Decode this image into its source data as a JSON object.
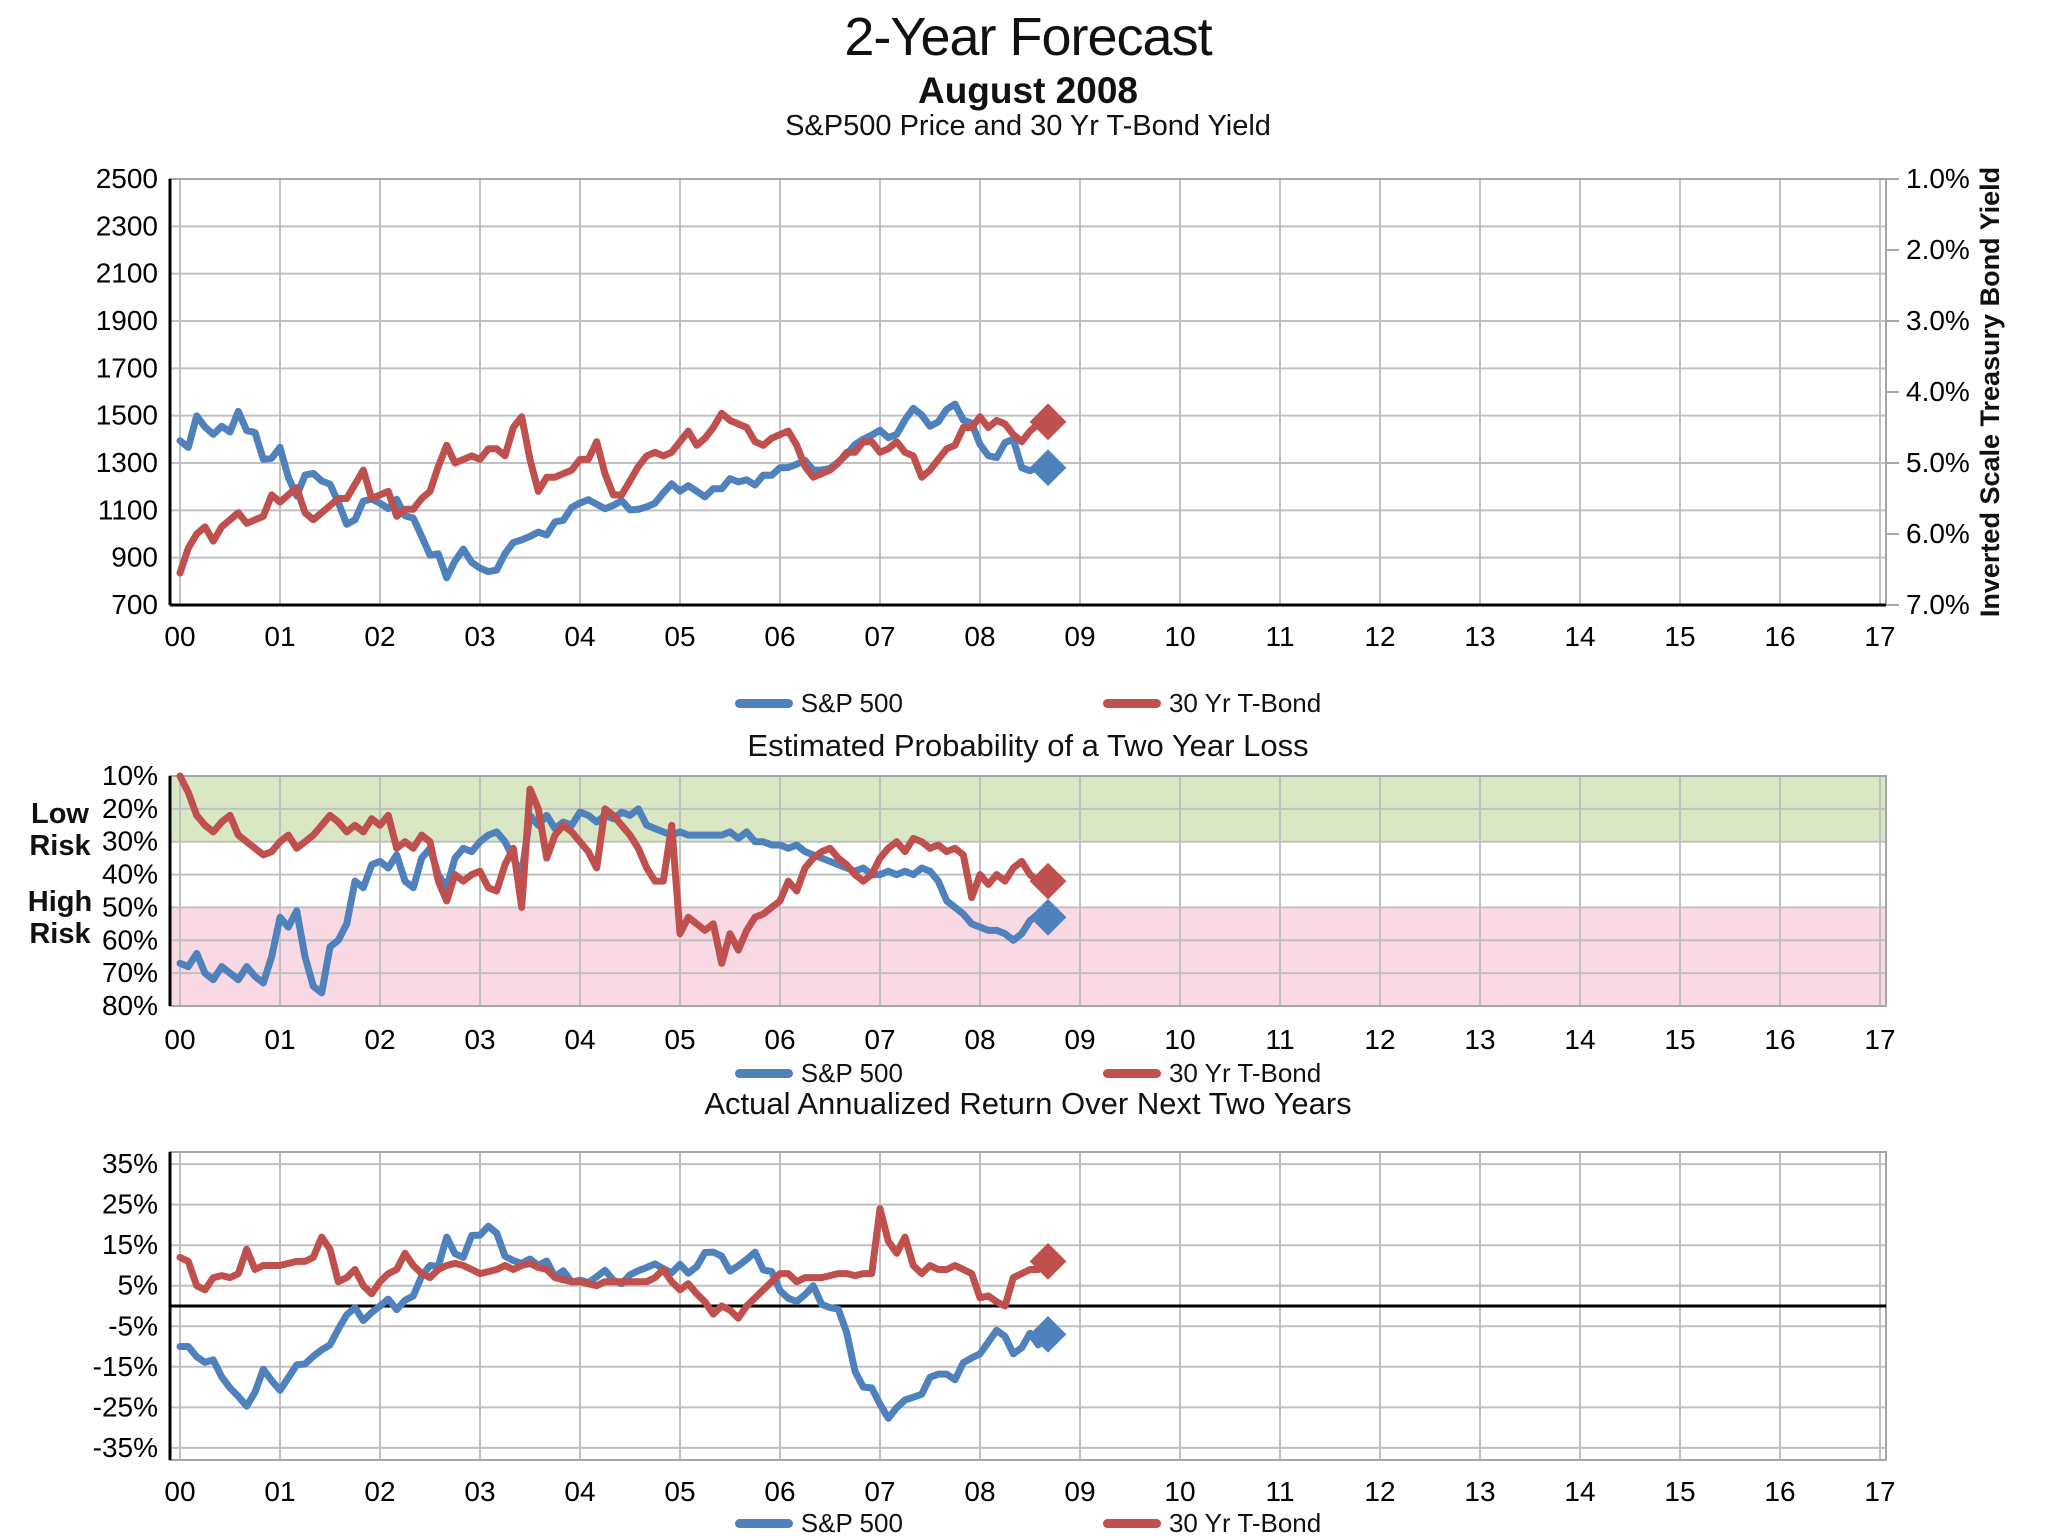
{
  "header": {
    "title": "2-Year Forecast",
    "subtitle": "August 2008"
  },
  "colors": {
    "sp500": "#4f81bd",
    "tbond": "#c0504d",
    "grid": "#c0c0c0",
    "border": "#a6a6a6",
    "axis": "#000000",
    "green_band": "#d9e7c4",
    "pink_band": "#f9d9e3"
  },
  "x_axis": {
    "labels": [
      "00",
      "01",
      "02",
      "03",
      "04",
      "05",
      "06",
      "07",
      "08",
      "09",
      "10",
      "11",
      "12",
      "13",
      "14",
      "15",
      "16",
      "17"
    ]
  },
  "legend": {
    "sp500_label": "S&P 500",
    "tbond_label": "30 Yr T-Bond"
  },
  "chart_data": [
    {
      "type": "line",
      "title": "S&P500 Price and 30 Yr T-Bond Yield",
      "x_start_year": 2000,
      "x_step_months": 1,
      "xlim_years": [
        0,
        17.2
      ],
      "left_axis": {
        "ylim": [
          700,
          2500
        ],
        "tick_values": [
          2500,
          2300,
          2100,
          1900,
          1700,
          1500,
          1300,
          1100,
          900,
          700
        ],
        "tick_labels": [
          "2500",
          "2300",
          "2100",
          "1900",
          "1700",
          "1500",
          "1300",
          "1100",
          "900",
          "700"
        ]
      },
      "right_axis": {
        "title": "Inverted Scale Treasury Bond Yield",
        "inverted": true,
        "ylim": [
          1.0,
          7.0
        ],
        "tick_values": [
          1,
          2,
          3,
          4,
          5,
          6,
          7
        ],
        "tick_labels": [
          "1.0%",
          "2.0%",
          "3.0%",
          "4.0%",
          "5.0%",
          "6.0%",
          "7.0%"
        ]
      },
      "series": [
        {
          "name": "S&P 500",
          "axis": "left",
          "color": "#4f81bd",
          "values": [
            1394,
            1366,
            1499,
            1452,
            1421,
            1455,
            1431,
            1518,
            1437,
            1429,
            1315,
            1320,
            1366,
            1240,
            1160,
            1249,
            1256,
            1224,
            1211,
            1134,
            1041,
            1060,
            1139,
            1148,
            1130,
            1107,
            1147,
            1077,
            1067,
            990,
            911,
            916,
            815,
            886,
            936,
            880,
            856,
            841,
            848,
            917,
            964,
            975,
            990,
            1008,
            996,
            1051,
            1058,
            1112,
            1131,
            1145,
            1126,
            1107,
            1121,
            1141,
            1102,
            1104,
            1115,
            1130,
            1174,
            1212,
            1181,
            1204,
            1181,
            1157,
            1192,
            1191,
            1234,
            1220,
            1229,
            1207,
            1249,
            1248,
            1280,
            1281,
            1295,
            1311,
            1270,
            1270,
            1277,
            1304,
            1336,
            1378,
            1401,
            1418,
            1438,
            1407,
            1421,
            1482,
            1531,
            1503,
            1455,
            1474,
            1527,
            1549,
            1481,
            1468,
            1379,
            1331,
            1323,
            1386,
            1400,
            1280,
            1267,
            1283
          ],
          "end_marker": {
            "x_year": 8.68,
            "value": 1280
          }
        },
        {
          "name": "30 Yr T-Bond",
          "axis": "right",
          "color": "#c0504d",
          "values": [
            6.55,
            6.2,
            6.0,
            5.9,
            6.1,
            5.9,
            5.8,
            5.7,
            5.85,
            5.8,
            5.75,
            5.45,
            5.55,
            5.45,
            5.35,
            5.7,
            5.8,
            5.7,
            5.6,
            5.5,
            5.5,
            5.3,
            5.1,
            5.5,
            5.45,
            5.4,
            5.75,
            5.65,
            5.65,
            5.5,
            5.4,
            5.05,
            4.75,
            5.0,
            4.95,
            4.9,
            4.95,
            4.8,
            4.8,
            4.9,
            4.5,
            4.35,
            4.95,
            5.4,
            5.2,
            5.2,
            5.15,
            5.1,
            4.95,
            4.95,
            4.7,
            5.15,
            5.45,
            5.45,
            5.25,
            5.05,
            4.9,
            4.85,
            4.9,
            4.85,
            4.7,
            4.55,
            4.75,
            4.65,
            4.5,
            4.3,
            4.4,
            4.45,
            4.5,
            4.7,
            4.75,
            4.65,
            4.6,
            4.55,
            4.75,
            5.05,
            5.2,
            5.15,
            5.1,
            5.0,
            4.85,
            4.85,
            4.7,
            4.7,
            4.85,
            4.8,
            4.7,
            4.85,
            4.9,
            5.2,
            5.1,
            4.95,
            4.8,
            4.75,
            4.5,
            4.5,
            4.35,
            4.5,
            4.4,
            4.45,
            4.6,
            4.7,
            4.55,
            4.45
          ],
          "end_marker": {
            "x_year": 8.68,
            "value": 4.42
          }
        }
      ]
    },
    {
      "type": "line",
      "title": "Estimated Probability of a Two Year Loss",
      "x_start_year": 2000,
      "x_step_months": 1,
      "xlim_years": [
        0,
        17.2
      ],
      "left_axis": {
        "inverted": true,
        "ylim": [
          10,
          80
        ],
        "tick_values": [
          10,
          20,
          30,
          40,
          50,
          60,
          70,
          80
        ],
        "tick_labels": [
          "10%",
          "20%",
          "30%",
          "40%",
          "50%",
          "60%",
          "70%",
          "80%"
        ]
      },
      "bands": [
        {
          "label": "Low Risk",
          "from": 10,
          "to": 30,
          "color": "#d9e7c4"
        },
        {
          "label": "High Risk",
          "from": 50,
          "to": 80,
          "color": "#f9d9e3"
        }
      ],
      "series": [
        {
          "name": "S&P 500",
          "axis": "left",
          "color": "#4f81bd",
          "values": [
            67,
            68,
            64,
            70,
            72,
            68,
            70,
            72,
            68,
            71,
            73,
            65,
            53,
            56,
            51,
            65,
            74,
            76,
            62,
            60,
            55,
            42,
            44,
            37,
            36,
            38,
            34,
            42,
            44,
            35,
            32,
            40,
            44,
            35,
            32,
            33,
            30,
            28,
            27,
            30,
            35,
            40,
            22,
            25,
            22,
            26,
            24,
            25,
            21,
            22,
            24,
            22,
            23,
            21,
            22,
            20,
            25,
            26,
            27,
            28,
            27,
            28,
            28,
            28,
            28,
            28,
            27,
            29,
            27,
            30,
            30,
            31,
            31,
            32,
            31,
            33,
            34,
            35,
            36,
            37,
            38,
            39,
            38,
            40,
            40,
            39,
            40,
            39,
            40,
            38,
            39,
            42,
            48,
            50,
            52,
            55,
            56,
            57,
            57,
            58,
            60,
            58,
            54,
            52
          ],
          "end_marker": {
            "x_year": 8.68,
            "value": 53
          }
        },
        {
          "name": "30 Yr T-Bond",
          "axis": "left",
          "color": "#c0504d",
          "values": [
            10,
            15,
            22,
            25,
            27,
            24,
            22,
            28,
            30,
            32,
            34,
            33,
            30,
            28,
            32,
            30,
            28,
            25,
            22,
            24,
            27,
            25,
            27,
            23,
            25,
            22,
            32,
            30,
            32,
            28,
            30,
            42,
            48,
            40,
            42,
            40,
            39,
            44,
            45,
            37,
            32,
            50,
            14,
            20,
            35,
            28,
            25,
            27,
            30,
            33,
            38,
            20,
            22,
            25,
            28,
            32,
            38,
            42,
            42,
            25,
            58,
            53,
            55,
            57,
            55,
            67,
            58,
            63,
            57,
            53,
            52,
            50,
            48,
            42,
            45,
            38,
            35,
            33,
            32,
            35,
            37,
            40,
            42,
            40,
            35,
            32,
            30,
            33,
            29,
            30,
            32,
            31,
            33,
            32,
            34,
            47,
            40,
            43,
            40,
            42,
            38,
            36,
            40,
            42
          ],
          "end_marker": {
            "x_year": 8.68,
            "value": 42
          }
        }
      ]
    },
    {
      "type": "line",
      "title": "Actual Annualized Return Over Next Two Years",
      "x_start_year": 2000,
      "x_step_months": 1,
      "xlim_years": [
        0,
        17.2
      ],
      "left_axis": {
        "ylim": [
          -38,
          38
        ],
        "tick_values": [
          35,
          25,
          15,
          5,
          -5,
          -15,
          -25,
          -35
        ],
        "tick_labels": [
          "35%",
          "25%",
          "15%",
          "5%",
          "-5%",
          "-15%",
          "-25%",
          "-35%"
        ],
        "zero_line": true
      },
      "series": [
        {
          "name": "S&P 500",
          "axis": "left",
          "color": "#4f81bd",
          "values": [
            -10.0,
            -10.0,
            -12.5,
            -13.9,
            -13.3,
            -17.5,
            -20.2,
            -22.3,
            -24.7,
            -21.3,
            -15.6,
            -18.4,
            -20.8,
            -17.7,
            -14.5,
            -14.3,
            -12.4,
            -10.8,
            -9.6,
            -5.7,
            -2.2,
            -0.4,
            -3.6,
            -1.6,
            0.0,
            1.7,
            -0.9,
            1.4,
            2.5,
            7.4,
            10.0,
            9.8,
            17.0,
            12.9,
            12.0,
            17.4,
            17.5,
            19.7,
            18.0,
            12.3,
            11.2,
            10.5,
            11.6,
            10.0,
            11.1,
            7.2,
            8.7,
            5.9,
            6.4,
            5.8,
            7.2,
            8.8,
            6.4,
            5.5,
            7.7,
            8.7,
            9.5,
            10.4,
            9.2,
            8.2,
            10.3,
            8.1,
            9.7,
            13.2,
            13.3,
            12.3,
            8.6,
            9.9,
            11.5,
            13.3,
            8.9,
            8.5,
            3.8,
            1.9,
            1.1,
            2.8,
            5.0,
            0.4,
            -0.4,
            -0.8,
            -6.6,
            -16.1,
            -20.0,
            -20.2,
            -24.2,
            -27.7,
            -25.1,
            -23.2,
            -22.5,
            -21.8,
            -17.6,
            -16.8,
            -16.8,
            -18.2,
            -14.0,
            -12.8,
            -11.8,
            -8.9,
            -6.0,
            -7.5,
            -11.8,
            -10.3,
            -6.7,
            -9.6
          ],
          "end_marker": {
            "x_year": 8.68,
            "value": -7.0
          }
        },
        {
          "name": "30 Yr T-Bond",
          "axis": "left",
          "color": "#c0504d",
          "values": [
            12,
            11,
            5,
            4,
            7,
            7.5,
            7,
            8,
            14,
            9,
            10,
            10,
            10,
            10.5,
            11,
            11,
            12,
            17,
            14,
            6,
            7,
            9,
            5,
            3,
            6,
            8,
            9,
            13,
            10,
            8,
            7,
            9,
            10,
            10.5,
            10,
            9,
            8,
            8.5,
            9,
            10,
            9,
            10,
            10.5,
            9.5,
            9,
            7,
            6.5,
            6,
            6,
            5.5,
            5,
            6,
            6,
            6,
            6,
            6,
            6,
            7,
            9,
            6,
            4,
            5.5,
            3,
            1,
            -2,
            0,
            -1,
            -3,
            0,
            2,
            4,
            6,
            8,
            8,
            6,
            7,
            7,
            7,
            7.5,
            8,
            8,
            7.5,
            8,
            8,
            24,
            16,
            13,
            17,
            10,
            8,
            10,
            9,
            9,
            10,
            9,
            8,
            2,
            2.5,
            1,
            0,
            7,
            8,
            9,
            9
          ],
          "end_marker": {
            "x_year": 8.68,
            "value": 11.0
          }
        }
      ]
    }
  ]
}
